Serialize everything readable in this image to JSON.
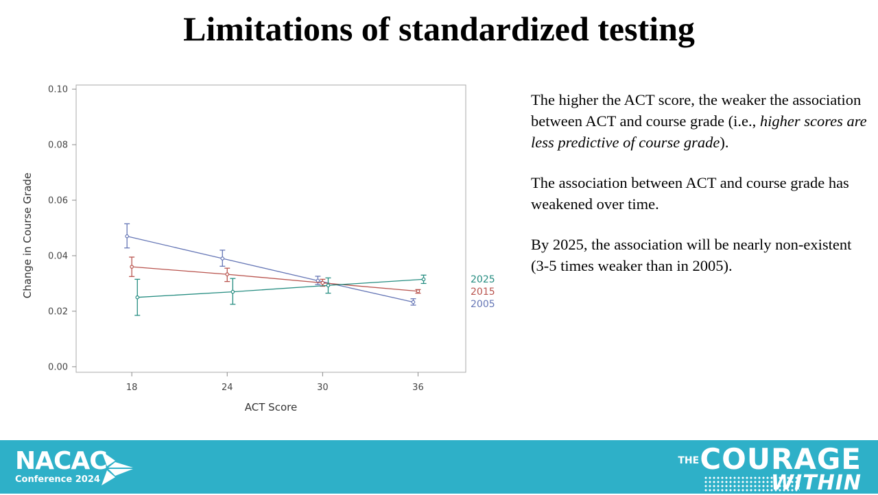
{
  "slide": {
    "title": "Limitations of standardized testing",
    "paragraphs": [
      {
        "pre": "The higher the ACT score, the weaker the association between ACT and course grade (i.e., ",
        "italic": "higher scores are less predictive of course grade",
        "post": ")."
      },
      {
        "pre": "The association between ACT and course grade has weakened over time.",
        "italic": "",
        "post": ""
      },
      {
        "pre": "By 2025, the association will be nearly non-existent (3-5 times weaker than in 2005).",
        "italic": "",
        "post": ""
      }
    ]
  },
  "footer": {
    "logo_left": {
      "name": "NACAC",
      "sub": "Conference 2024"
    },
    "logo_right": {
      "the": "THE",
      "line1": "COURAGE",
      "line2": "WITHIN"
    },
    "color": "#2eb0c8"
  },
  "chart_data": {
    "type": "line",
    "xlabel": "ACT Score",
    "ylabel": "Change in Course Grade",
    "xlim": [
      14.5,
      39
    ],
    "ylim": [
      -0.002,
      0.1015
    ],
    "xticks": [
      18,
      24,
      30,
      36
    ],
    "yticks": [
      "0.00",
      "0.02",
      "0.04",
      "0.06",
      "0.08",
      "0.10"
    ],
    "grid": false,
    "legend": "right-end labels",
    "series": [
      {
        "name": "2005",
        "color": "#6475b5",
        "points": [
          {
            "x": 18,
            "y": 0.047,
            "lo": 0.0428,
            "hi": 0.0515
          },
          {
            "x": 24,
            "y": 0.039,
            "lo": 0.0362,
            "hi": 0.042
          },
          {
            "x": 30,
            "y": 0.031,
            "lo": 0.0296,
            "hi": 0.0326
          },
          {
            "x": 36,
            "y": 0.0233,
            "lo": 0.0222,
            "hi": 0.0245
          }
        ]
      },
      {
        "name": "2015",
        "color": "#b8524c",
        "points": [
          {
            "x": 18,
            "y": 0.036,
            "lo": 0.0325,
            "hi": 0.0395
          },
          {
            "x": 24,
            "y": 0.0333,
            "lo": 0.0307,
            "hi": 0.0355
          },
          {
            "x": 30,
            "y": 0.0302,
            "lo": 0.029,
            "hi": 0.0315
          },
          {
            "x": 36,
            "y": 0.0272,
            "lo": 0.0265,
            "hi": 0.0278
          }
        ]
      },
      {
        "name": "2025",
        "color": "#248c80",
        "points": [
          {
            "x": 18,
            "y": 0.025,
            "lo": 0.0185,
            "hi": 0.0315
          },
          {
            "x": 24,
            "y": 0.027,
            "lo": 0.0225,
            "hi": 0.0318
          },
          {
            "x": 30,
            "y": 0.0293,
            "lo": 0.0265,
            "hi": 0.032
          },
          {
            "x": 36,
            "y": 0.0315,
            "lo": 0.03,
            "hi": 0.033
          }
        ]
      }
    ]
  }
}
